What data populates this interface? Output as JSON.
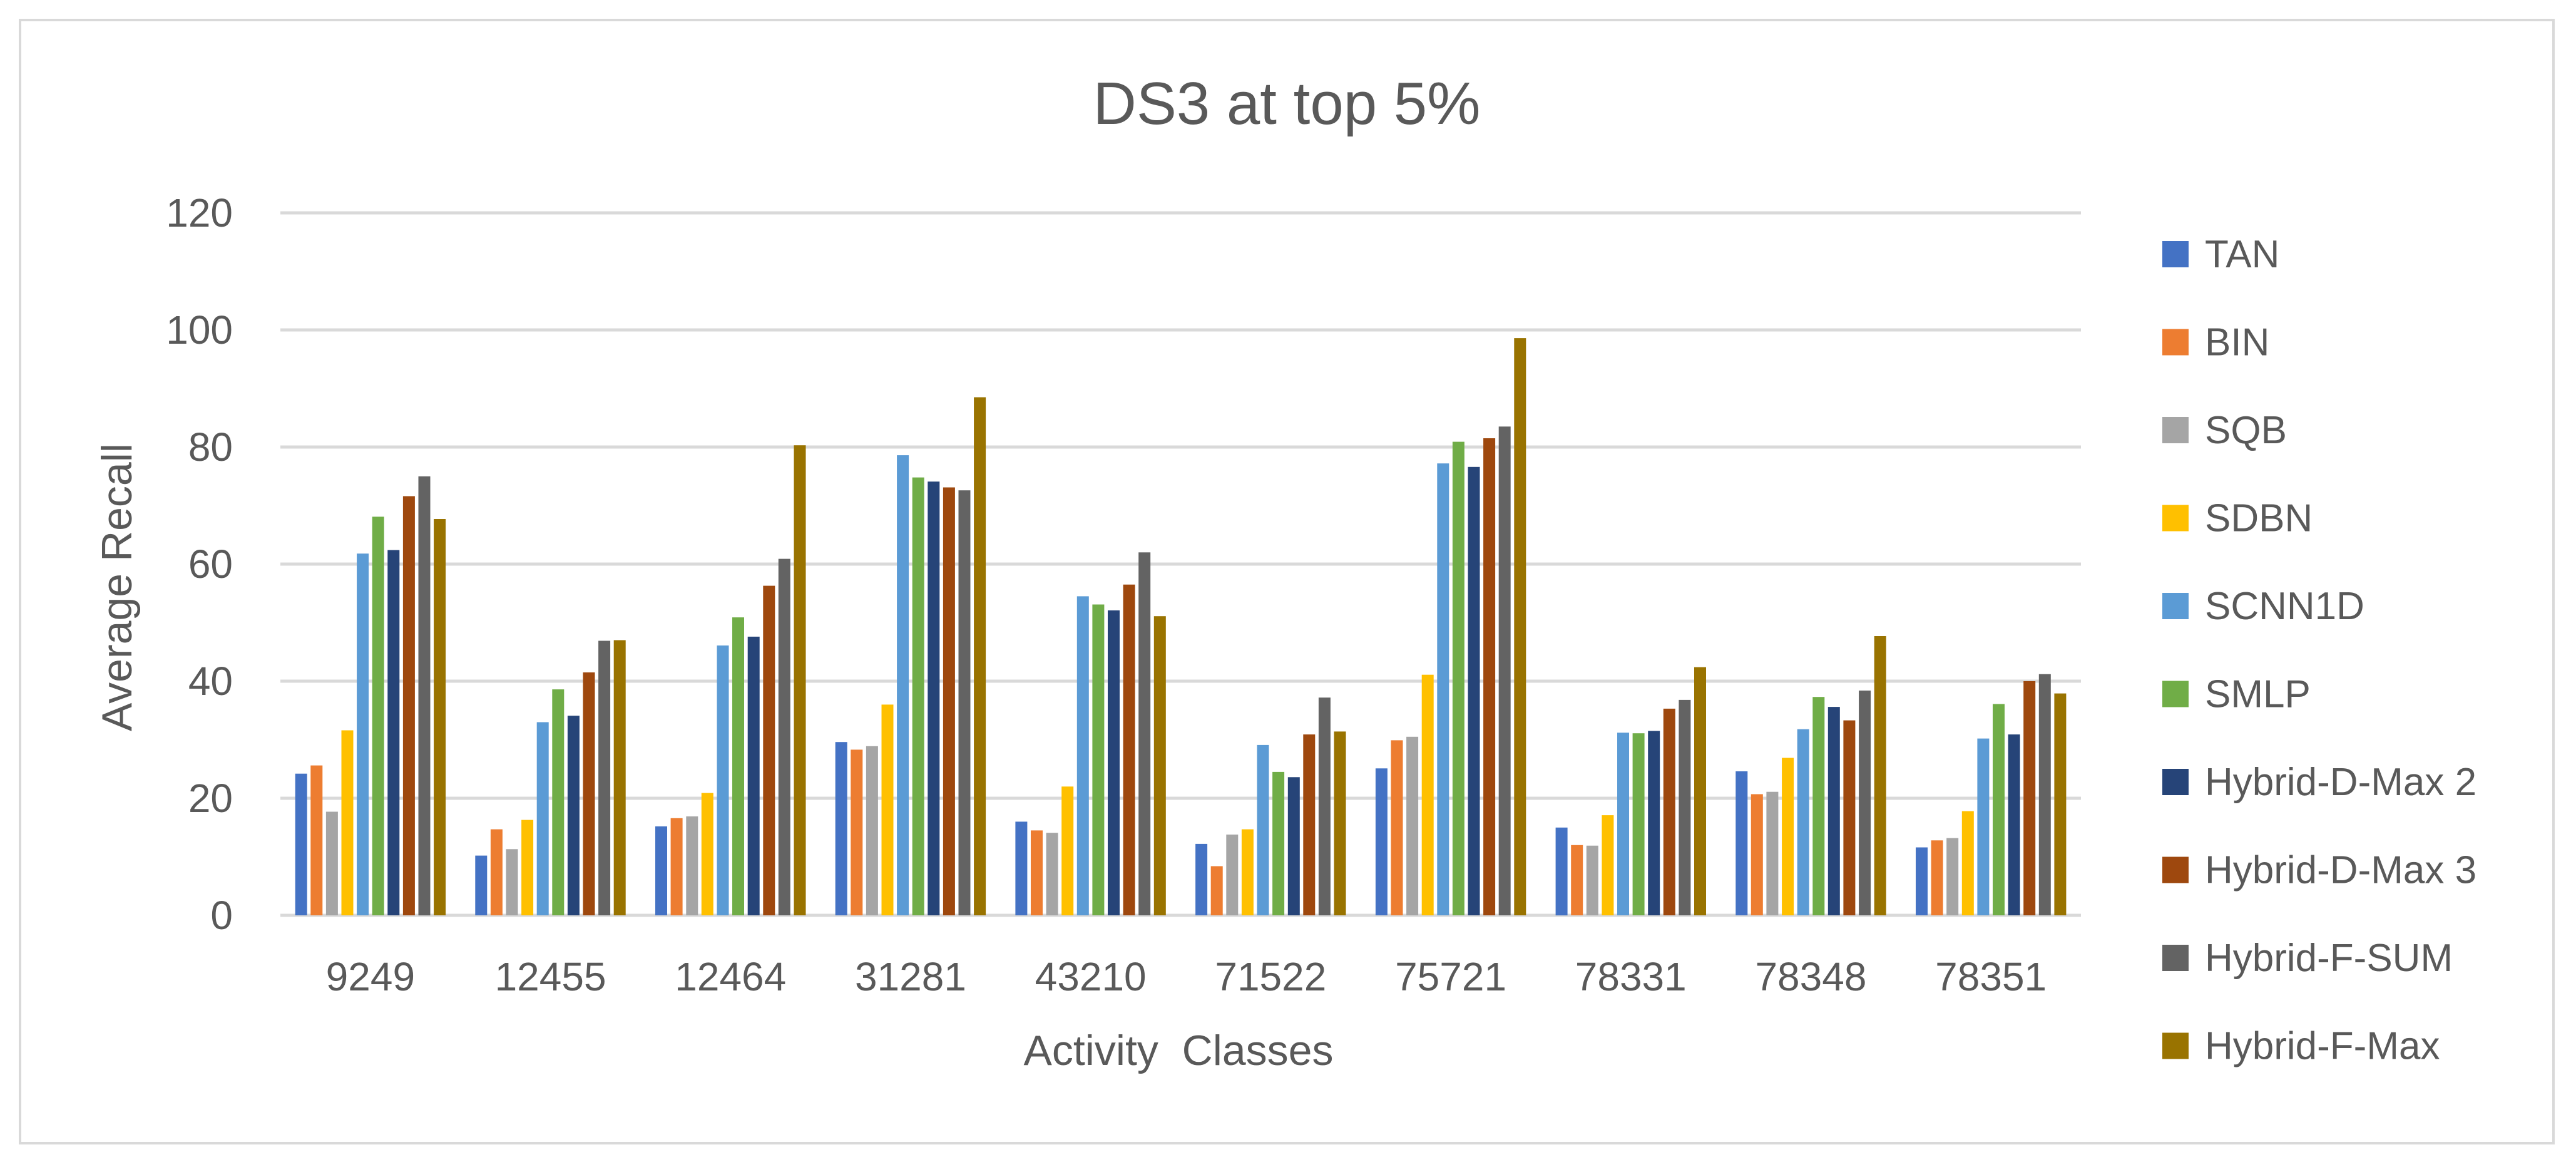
{
  "chart_data": {
    "type": "bar",
    "title": "DS3 at top 5%",
    "xlabel": "Activity  Classes",
    "ylabel": "Average Recall",
    "ylim": [
      0,
      120
    ],
    "yticks": [
      0,
      20,
      40,
      60,
      80,
      100,
      120
    ],
    "grid": true,
    "legend_position": "right",
    "categories": [
      "9249",
      "12455",
      "12464",
      "31281",
      "43210",
      "71522",
      "75721",
      "78331",
      "78348",
      "78351"
    ],
    "series": [
      {
        "name": "TAN",
        "color": "#4472c4",
        "values": [
          24.2,
          10.2,
          15.2,
          29.6,
          16.0,
          12.2,
          25.1,
          15.0,
          24.6,
          11.6
        ]
      },
      {
        "name": "BIN",
        "color": "#ed7d31",
        "values": [
          25.6,
          14.7,
          16.6,
          28.3,
          14.5,
          8.4,
          29.9,
          12.0,
          20.7,
          12.8
        ]
      },
      {
        "name": "SQB",
        "color": "#a5a5a5",
        "values": [
          17.7,
          11.3,
          16.9,
          28.9,
          14.1,
          13.8,
          30.5,
          11.9,
          21.1,
          13.2
        ]
      },
      {
        "name": "SDBN",
        "color": "#ffc000",
        "values": [
          31.6,
          16.3,
          20.9,
          36.0,
          22.0,
          14.7,
          41.1,
          17.1,
          26.9,
          17.8
        ]
      },
      {
        "name": "SCNN1D",
        "color": "#5b9bd5",
        "values": [
          61.8,
          33.0,
          46.1,
          78.6,
          54.5,
          29.1,
          77.2,
          31.2,
          31.8,
          30.2
        ]
      },
      {
        "name": "SMLP",
        "color": "#70ad47",
        "values": [
          68.1,
          38.6,
          50.9,
          74.8,
          53.1,
          24.5,
          80.9,
          31.1,
          37.3,
          36.1
        ]
      },
      {
        "name": "Hybrid-D-Max 2",
        "color": "#264478",
        "values": [
          62.4,
          34.1,
          47.6,
          74.1,
          52.1,
          23.6,
          76.6,
          31.5,
          35.6,
          30.9
        ]
      },
      {
        "name": "Hybrid-D-Max 3",
        "color": "#9e480e",
        "values": [
          71.6,
          41.5,
          56.3,
          73.1,
          56.5,
          30.9,
          81.5,
          35.3,
          33.3,
          40.0
        ]
      },
      {
        "name": "Hybrid-F-SUM",
        "color": "#636363",
        "values": [
          75.0,
          46.9,
          60.9,
          72.6,
          62.0,
          37.2,
          83.5,
          36.8,
          38.4,
          41.2
        ]
      },
      {
        "name": "Hybrid-F-Max",
        "color": "#997300",
        "values": [
          67.7,
          47.0,
          80.3,
          88.5,
          51.1,
          31.4,
          98.6,
          42.4,
          47.7,
          37.9
        ]
      }
    ]
  }
}
